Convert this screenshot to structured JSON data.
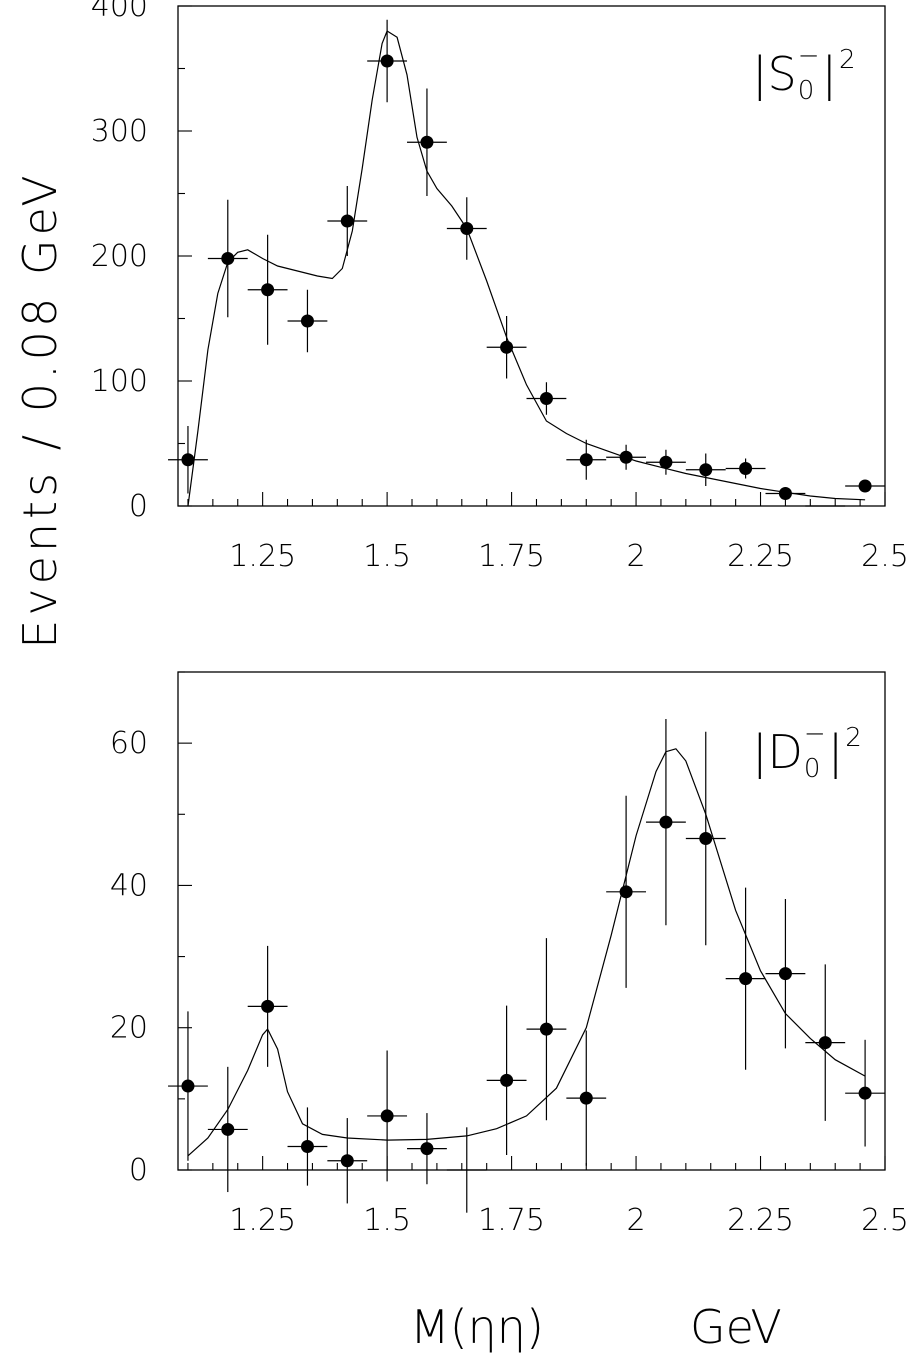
{
  "ylabel": "Events / 0.08 GeV",
  "xlabel": {
    "mass": "M(ηη)",
    "unit": "GeV"
  },
  "chart_data": [
    {
      "type": "scatter",
      "panel": "S",
      "label": {
        "base": "|S",
        "sub": "0",
        "sup": "−",
        "tail": "|",
        "power": "2"
      },
      "xlim": [
        1.08,
        2.5
      ],
      "ylim": [
        0,
        400
      ],
      "xticks": [
        1.25,
        1.5,
        1.75,
        2,
        2.25,
        2.5
      ],
      "xtick_labels": [
        "1.25",
        "1.5",
        "1.75",
        "2",
        "2.25",
        "2.5"
      ],
      "yticks": [
        0,
        100,
        200,
        300,
        400
      ],
      "ytick_labels": [
        "0",
        "100",
        "200",
        "300",
        "400"
      ],
      "bin_half_width": 0.04,
      "points": [
        {
          "x": 1.1,
          "y": 37,
          "err": 27
        },
        {
          "x": 1.18,
          "y": 198,
          "err": 47
        },
        {
          "x": 1.26,
          "y": 173,
          "err": 44
        },
        {
          "x": 1.34,
          "y": 148,
          "err": 25
        },
        {
          "x": 1.42,
          "y": 228,
          "err": 28
        },
        {
          "x": 1.5,
          "y": 356,
          "err": 33
        },
        {
          "x": 1.58,
          "y": 291,
          "err": 43
        },
        {
          "x": 1.66,
          "y": 222,
          "err": 25
        },
        {
          "x": 1.74,
          "y": 127,
          "err": 25
        },
        {
          "x": 1.82,
          "y": 86,
          "err": 13
        },
        {
          "x": 1.9,
          "y": 37,
          "err": 16
        },
        {
          "x": 1.98,
          "y": 39,
          "err": 10
        },
        {
          "x": 2.06,
          "y": 35,
          "err": 10
        },
        {
          "x": 2.14,
          "y": 29,
          "err": 13
        },
        {
          "x": 2.22,
          "y": 30,
          "err": 8
        },
        {
          "x": 2.3,
          "y": 10,
          "err": 5
        },
        {
          "x": 2.38,
          "y": 0,
          "err": 0,
          "marker": false
        },
        {
          "x": 2.46,
          "y": 16,
          "err": 0
        }
      ],
      "fit_curve": [
        [
          1.1,
          0
        ],
        [
          1.12,
          60
        ],
        [
          1.14,
          125
        ],
        [
          1.16,
          170
        ],
        [
          1.18,
          195
        ],
        [
          1.2,
          203
        ],
        [
          1.22,
          205
        ],
        [
          1.25,
          198
        ],
        [
          1.28,
          192
        ],
        [
          1.32,
          188
        ],
        [
          1.36,
          184
        ],
        [
          1.39,
          182
        ],
        [
          1.41,
          190
        ],
        [
          1.43,
          220
        ],
        [
          1.45,
          270
        ],
        [
          1.47,
          325
        ],
        [
          1.49,
          370
        ],
        [
          1.5,
          380
        ],
        [
          1.52,
          375
        ],
        [
          1.54,
          345
        ],
        [
          1.56,
          295
        ],
        [
          1.58,
          268
        ],
        [
          1.6,
          254
        ],
        [
          1.63,
          240
        ],
        [
          1.66,
          222
        ],
        [
          1.7,
          180
        ],
        [
          1.74,
          135
        ],
        [
          1.78,
          97
        ],
        [
          1.82,
          68
        ],
        [
          1.86,
          58
        ],
        [
          1.9,
          50
        ],
        [
          1.95,
          43
        ],
        [
          2.0,
          36
        ],
        [
          2.05,
          31
        ],
        [
          2.1,
          26
        ],
        [
          2.15,
          22
        ],
        [
          2.2,
          18
        ],
        [
          2.25,
          14
        ],
        [
          2.3,
          11
        ],
        [
          2.35,
          8
        ],
        [
          2.4,
          6
        ],
        [
          2.46,
          5
        ]
      ]
    },
    {
      "type": "scatter",
      "panel": "D",
      "label": {
        "base": "|D",
        "sub": "0",
        "sup": "−",
        "tail": "|",
        "power": "2"
      },
      "xlim": [
        1.08,
        2.5
      ],
      "ylim": [
        0,
        70
      ],
      "xticks": [
        1.25,
        1.5,
        1.75,
        2,
        2.25,
        2.5
      ],
      "xtick_labels": [
        "1.25",
        "1.5",
        "1.75",
        "2",
        "2.25",
        "2.5"
      ],
      "yticks": [
        0,
        20,
        40,
        60
      ],
      "ytick_labels": [
        "0",
        "20",
        "40",
        "60"
      ],
      "bin_half_width": 0.04,
      "points": [
        {
          "x": 1.1,
          "y": 11.8,
          "err": 10.5
        },
        {
          "x": 1.18,
          "y": 5.7,
          "err": 8.8
        },
        {
          "x": 1.26,
          "y": 23.0,
          "err": 8.5
        },
        {
          "x": 1.34,
          "y": 3.3,
          "err": 5.5
        },
        {
          "x": 1.42,
          "y": 1.3,
          "err": 6.0
        },
        {
          "x": 1.5,
          "y": 7.6,
          "err": 9.2
        },
        {
          "x": 1.58,
          "y": 3.0,
          "err": 5.0
        },
        {
          "x": 1.66,
          "y": 0,
          "err": 6.0,
          "marker": false
        },
        {
          "x": 1.74,
          "y": 12.6,
          "err": 10.5
        },
        {
          "x": 1.82,
          "y": 19.8,
          "err": 12.8
        },
        {
          "x": 1.9,
          "y": 10.1,
          "err": 9.5
        },
        {
          "x": 1.98,
          "y": 39.1,
          "err": 13.5
        },
        {
          "x": 2.06,
          "y": 48.9,
          "err": 14.5
        },
        {
          "x": 2.14,
          "y": 46.6,
          "err": 15.0
        },
        {
          "x": 2.22,
          "y": 26.9,
          "err": 12.8
        },
        {
          "x": 2.3,
          "y": 27.6,
          "err": 10.5
        },
        {
          "x": 2.38,
          "y": 17.9,
          "err": 11.0
        },
        {
          "x": 2.46,
          "y": 10.8,
          "err": 7.5
        }
      ],
      "fit_curve": [
        [
          1.1,
          2
        ],
        [
          1.14,
          4.5
        ],
        [
          1.18,
          8.5
        ],
        [
          1.22,
          14
        ],
        [
          1.25,
          19
        ],
        [
          1.26,
          19.8
        ],
        [
          1.28,
          17
        ],
        [
          1.3,
          11
        ],
        [
          1.33,
          6.5
        ],
        [
          1.37,
          5.0
        ],
        [
          1.42,
          4.5
        ],
        [
          1.5,
          4.2
        ],
        [
          1.58,
          4.3
        ],
        [
          1.66,
          4.8
        ],
        [
          1.72,
          5.8
        ],
        [
          1.78,
          7.6
        ],
        [
          1.84,
          11.5
        ],
        [
          1.9,
          20
        ],
        [
          1.95,
          33
        ],
        [
          2.0,
          47
        ],
        [
          2.04,
          56
        ],
        [
          2.06,
          58.8
        ],
        [
          2.08,
          59.2
        ],
        [
          2.1,
          57.5
        ],
        [
          2.14,
          50
        ],
        [
          2.2,
          36.5
        ],
        [
          2.25,
          28
        ],
        [
          2.3,
          22
        ],
        [
          2.35,
          18.5
        ],
        [
          2.4,
          15.5
        ],
        [
          2.46,
          13.2
        ]
      ]
    }
  ]
}
